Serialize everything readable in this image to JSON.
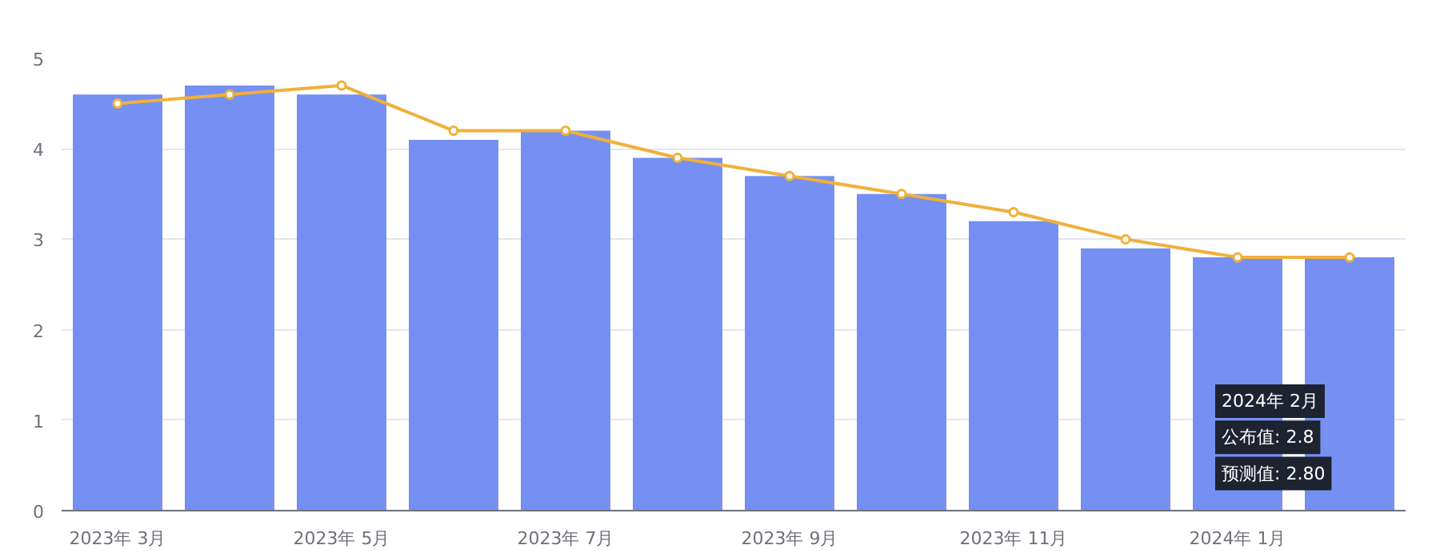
{
  "chart_data": {
    "type": "bar",
    "categories": [
      "2023年 3月",
      null,
      "2023年 5月",
      null,
      "2023年 7月",
      null,
      "2023年 9月",
      null,
      "2023年 11月",
      null,
      "2024年 1月",
      null
    ],
    "series": [
      {
        "color": "#7590f2",
        "values": [
          4.6,
          4.7,
          4.6,
          4.1,
          4.2,
          3.9,
          3.7,
          3.5,
          3.2,
          2.9,
          2.8,
          2.8
        ]
      },
      {
        "type": "line",
        "color": "#f0b03a",
        "values": [
          4.5,
          4.6,
          4.7,
          4.2,
          4.2,
          3.9,
          3.7,
          3.5,
          3.3,
          3.0,
          2.8,
          2.8
        ]
      }
    ],
    "ylim": [
      0,
      5
    ],
    "yticks": [
      0,
      1,
      2,
      3,
      4,
      5
    ],
    "grid": "y",
    "marker": "circle",
    "line_style": "solid",
    "annotations": [
      "2024年 2月",
      "公布值: 2.8",
      "预测值: 2.80"
    ]
  }
}
